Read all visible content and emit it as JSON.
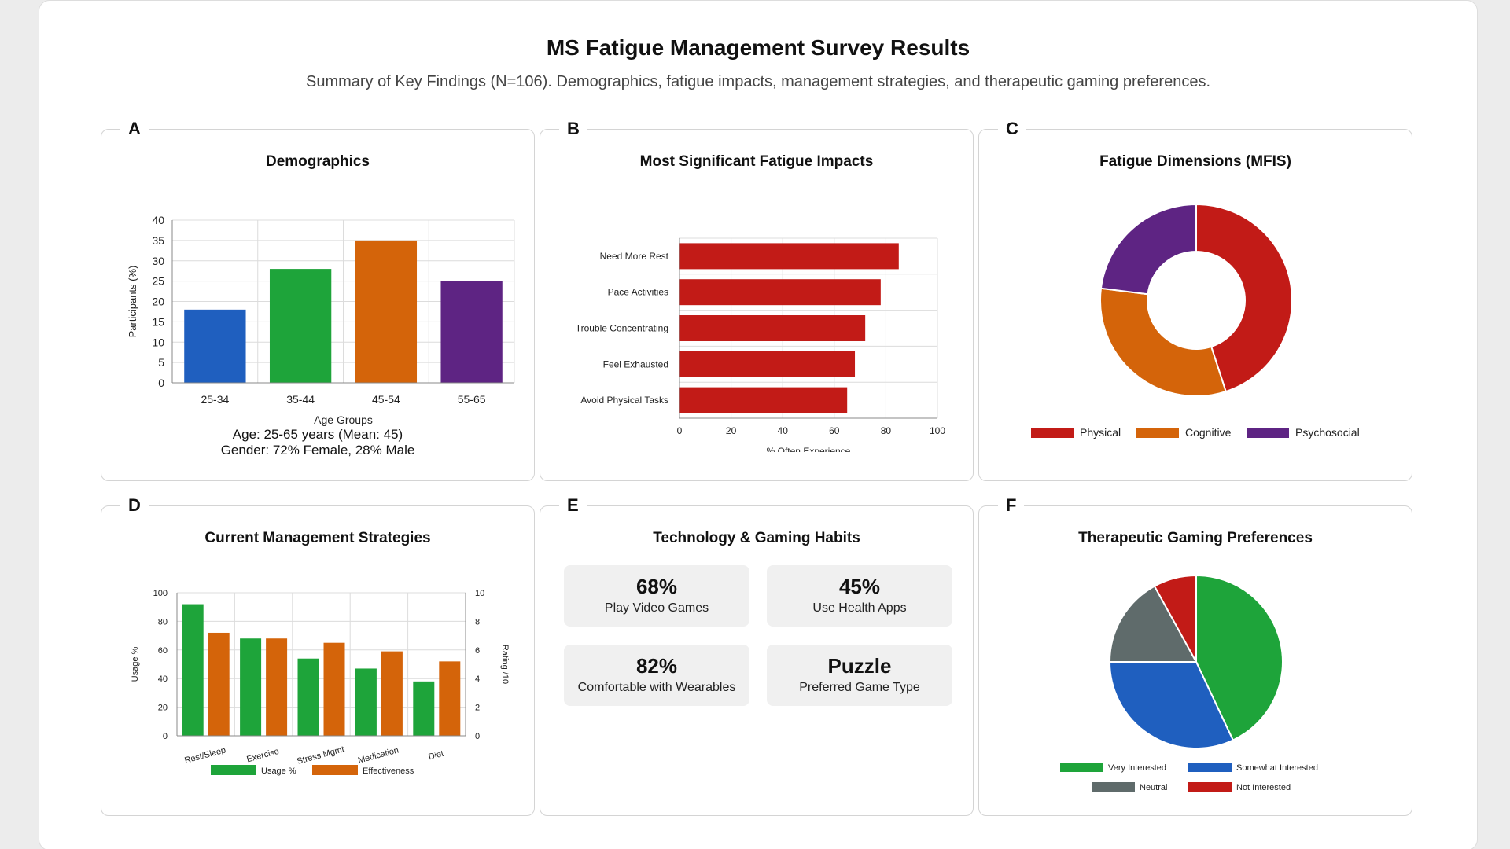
{
  "header": {
    "title": "MS Fatigue Management Survey Results",
    "subtitle": "Summary of Key Findings (N=106). Demographics, fatigue impacts, management strategies, and therapeutic gaming preferences."
  },
  "panels": {
    "a": {
      "letter": "A",
      "title": "Demographics",
      "note_age": "Age: 25-65 years (Mean: 45)",
      "note_gender": "Gender: 72% Female, 28% Male"
    },
    "b": {
      "letter": "B",
      "title": "Most Significant Fatigue Impacts"
    },
    "c": {
      "letter": "C",
      "title": "Fatigue Dimensions (MFIS)"
    },
    "d": {
      "letter": "D",
      "title": "Current Management Strategies"
    },
    "e": {
      "letter": "E",
      "title": "Technology & Gaming Habits",
      "stats": [
        {
          "value": "68%",
          "label": "Play Video Games"
        },
        {
          "value": "45%",
          "label": "Use Health Apps"
        },
        {
          "value": "82%",
          "label": "Comfortable with Wearables"
        },
        {
          "value": "Puzzle",
          "label": "Preferred Game Type"
        }
      ]
    },
    "f": {
      "letter": "F",
      "title": "Therapeutic Gaming Preferences"
    }
  },
  "chart_data": [
    {
      "id": "demographics",
      "type": "bar",
      "categories": [
        "25-34",
        "35-44",
        "45-54",
        "55-65"
      ],
      "values": [
        18,
        28,
        35,
        25
      ],
      "colors": [
        "#1f5fbf",
        "#1ea43a",
        "#d4640a",
        "#5e2483"
      ],
      "xlabel": "Age Groups",
      "ylabel": "Participants (%)",
      "ylim": [
        0,
        40
      ],
      "yticks": [
        0,
        5,
        10,
        15,
        20,
        25,
        30,
        35,
        40
      ],
      "grid": true
    },
    {
      "id": "fatigue-impacts",
      "type": "bar",
      "orientation": "horizontal",
      "categories": [
        "Need More Rest",
        "Pace Activities",
        "Trouble Concentrating",
        "Feel Exhausted",
        "Avoid Physical Tasks"
      ],
      "values": [
        85,
        78,
        72,
        68,
        65
      ],
      "color": "#c21b17",
      "xlabel": "% Often Experience",
      "xlim": [
        0,
        100
      ],
      "xticks": [
        0,
        20,
        40,
        60,
        80,
        100
      ],
      "grid": true
    },
    {
      "id": "fatigue-dimensions",
      "type": "pie",
      "donut": true,
      "labels": [
        "Physical",
        "Cognitive",
        "Psychosocial"
      ],
      "values": [
        45,
        32,
        23
      ],
      "colors": [
        "#c21b17",
        "#d4640a",
        "#5e2483"
      ],
      "legend": "bottom"
    },
    {
      "id": "management-strategies",
      "type": "bar",
      "categories": [
        "Rest/Sleep",
        "Exercise",
        "Stress Mgmt",
        "Medication",
        "Diet"
      ],
      "series": [
        {
          "name": "Usage %",
          "values": [
            92,
            68,
            54,
            47,
            38
          ],
          "color": "#1ea43a",
          "axis": "left"
        },
        {
          "name": "Effectiveness",
          "values": [
            7.2,
            6.8,
            6.5,
            5.9,
            5.2
          ],
          "color": "#d4640a",
          "axis": "right"
        }
      ],
      "ylabel": "Usage %",
      "ylabel_right": "Rating /10",
      "ylim": [
        0,
        100
      ],
      "ylim_right": [
        0,
        10
      ],
      "yticks": [
        0,
        20,
        40,
        60,
        80,
        100
      ],
      "yticks_right": [
        0,
        2,
        4,
        6,
        8,
        10
      ],
      "legend": "bottom",
      "grid": true
    },
    {
      "id": "gaming-preferences",
      "type": "pie",
      "labels": [
        "Very Interested",
        "Somewhat Interested",
        "Neutral",
        "Not Interested"
      ],
      "values": [
        43,
        32,
        17,
        8
      ],
      "colors": [
        "#1ea43a",
        "#1f5fbf",
        "#5f6b6b",
        "#c21b17"
      ],
      "legend": "bottom"
    }
  ]
}
